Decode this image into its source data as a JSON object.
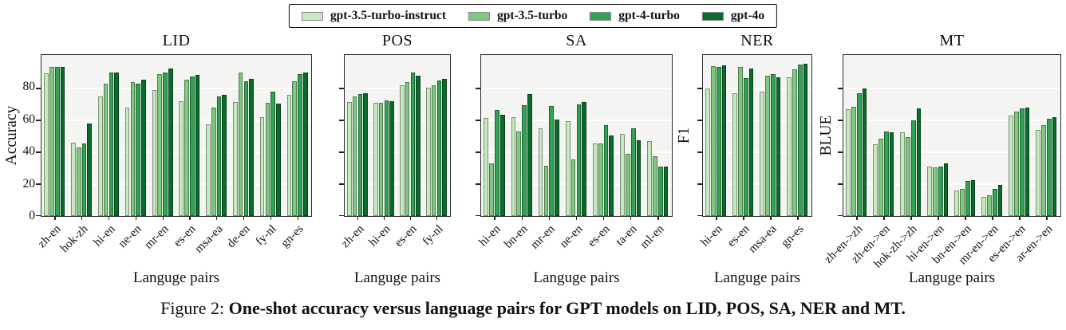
{
  "legend": {
    "items": [
      {
        "label": "gpt-3.5-turbo-instruct",
        "color": "#c7e9c0"
      },
      {
        "label": "gpt-3.5-turbo",
        "color": "#7fc97f"
      },
      {
        "label": "gpt-4-turbo",
        "color": "#31a354"
      },
      {
        "label": "gpt-4o",
        "color": "#0a6b2d"
      }
    ]
  },
  "caption": {
    "prefix": "Figure 2: ",
    "bold_text": "One-shot accuracy versus language pairs for GPT models on LID, POS, SA, NER and MT."
  },
  "chart_data": [
    {
      "type": "bar",
      "title": "LID",
      "xlabel": "Languge pairs",
      "ylabel": "Accuracy",
      "ylim": [
        0,
        100
      ],
      "yticks": [
        0,
        20,
        40,
        60,
        80
      ],
      "ytick_labels_visible": true,
      "grid": true,
      "legend_position": "figure-top",
      "categories": [
        "zh-en",
        "hok-zh",
        "hi-en",
        "ne-en",
        "mr-en",
        "es-en",
        "msa-ea",
        "de-en",
        "fy-nl",
        "gn-es"
      ],
      "series": [
        {
          "name": "gpt-3.5-turbo-instruct",
          "values": [
            89.5,
            46,
            75,
            68,
            79,
            72,
            57.5,
            71.5,
            62,
            76
          ]
        },
        {
          "name": "gpt-3.5-turbo",
          "values": [
            93.5,
            43,
            83,
            84,
            89,
            85.5,
            68,
            90,
            71,
            84.5
          ]
        },
        {
          "name": "gpt-4-turbo",
          "values": [
            93.5,
            45.5,
            90,
            83,
            90,
            87.5,
            75,
            84.5,
            78,
            89
          ]
        },
        {
          "name": "gpt-4o",
          "values": [
            93.5,
            58,
            90,
            85.5,
            92.5,
            88.5,
            76,
            86,
            70.5,
            90
          ]
        }
      ]
    },
    {
      "type": "bar",
      "title": "POS",
      "xlabel": "Languge pairs",
      "ylabel": "",
      "ylim": [
        0,
        100
      ],
      "yticks": [
        0,
        20,
        40,
        60,
        80
      ],
      "ytick_labels_visible": false,
      "grid": true,
      "categories": [
        "zh-en",
        "hi-en",
        "es-en",
        "fy-nl"
      ],
      "series": [
        {
          "name": "gpt-3.5-turbo-instruct",
          "values": [
            71.5,
            71,
            82,
            80.5
          ]
        },
        {
          "name": "gpt-3.5-turbo",
          "values": [
            75,
            71,
            84,
            82
          ]
        },
        {
          "name": "gpt-4-turbo",
          "values": [
            76.5,
            72.5,
            90,
            85
          ]
        },
        {
          "name": "gpt-4o",
          "values": [
            77,
            72,
            88,
            86
          ]
        }
      ]
    },
    {
      "type": "bar",
      "title": "SA",
      "xlabel": "Languge pairs",
      "ylabel": "",
      "ylim": [
        0,
        100
      ],
      "yticks": [
        0,
        20,
        40,
        60,
        80
      ],
      "ytick_labels_visible": false,
      "grid": true,
      "categories": [
        "hi-en",
        "bn-en",
        "mr-en",
        "ne-en",
        "es-en",
        "ta-en",
        "ml-en"
      ],
      "series": [
        {
          "name": "gpt-3.5-turbo-instruct",
          "values": [
            61.5,
            62,
            55,
            59.5,
            45.5,
            51.5,
            47
          ]
        },
        {
          "name": "gpt-3.5-turbo",
          "values": [
            33,
            53,
            31.5,
            35.5,
            45.5,
            39,
            37.5
          ]
        },
        {
          "name": "gpt-4-turbo",
          "values": [
            66.5,
            69.5,
            69,
            70,
            57,
            55,
            31
          ]
        },
        {
          "name": "gpt-4o",
          "values": [
            63.5,
            76.5,
            60.5,
            71.5,
            50.5,
            47.5,
            31
          ]
        }
      ]
    },
    {
      "type": "bar",
      "title": "NER",
      "xlabel": "Languge pairs",
      "ylabel": "F1",
      "ylim": [
        0,
        100
      ],
      "yticks": [
        0,
        20,
        40,
        60,
        80
      ],
      "ytick_labels_visible": false,
      "grid": true,
      "categories": [
        "hi-en",
        "es-en",
        "msa-ea",
        "gn-es"
      ],
      "series": [
        {
          "name": "gpt-3.5-turbo-instruct",
          "values": [
            80,
            77,
            78,
            87
          ]
        },
        {
          "name": "gpt-3.5-turbo",
          "values": [
            94,
            93.5,
            88,
            92
          ]
        },
        {
          "name": "gpt-4-turbo",
          "values": [
            93.5,
            86.5,
            89,
            95
          ]
        },
        {
          "name": "gpt-4o",
          "values": [
            94.5,
            92.5,
            87,
            95.5
          ]
        }
      ]
    },
    {
      "type": "bar",
      "title": "MT",
      "xlabel": "Languge pairs",
      "ylabel": "BLUE",
      "ylim": [
        0,
        100
      ],
      "yticks": [
        0,
        20,
        40,
        60,
        80
      ],
      "ytick_labels_visible": false,
      "grid": true,
      "categories": [
        "zh-en->zh",
        "zh-en->en",
        "hok-zh->zh",
        "hi-en->en",
        "bn-en->en",
        "mr-en->en",
        "es-en->en",
        "ar-en->en"
      ],
      "series": [
        {
          "name": "gpt-3.5-turbo-instruct",
          "values": [
            67,
            45,
            52.5,
            31,
            16,
            12,
            63,
            54
          ]
        },
        {
          "name": "gpt-3.5-turbo",
          "values": [
            68.5,
            48.5,
            49.5,
            30.5,
            17,
            13,
            65.5,
            57
          ]
        },
        {
          "name": "gpt-4-turbo",
          "values": [
            77,
            53,
            60,
            31,
            22,
            17,
            67.5,
            61
          ]
        },
        {
          "name": "gpt-4o",
          "values": [
            80,
            52.5,
            67.5,
            33,
            22.5,
            19.5,
            68,
            62
          ]
        }
      ]
    }
  ]
}
